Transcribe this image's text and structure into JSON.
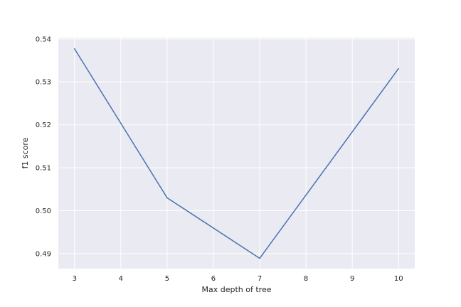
{
  "chart_data": {
    "type": "line",
    "title": "",
    "xlabel": "Max depth of tree",
    "ylabel": "f1 score",
    "x": [
      3,
      5,
      7,
      10
    ],
    "series": [
      {
        "values": [
          0.5377,
          0.503,
          0.4889,
          0.5331
        ]
      }
    ],
    "xlim": [
      2.65,
      10.35
    ],
    "ylim": [
      0.4865,
      0.5403
    ],
    "xticks": [
      3,
      4,
      5,
      6,
      7,
      8,
      9,
      10
    ],
    "xtick_labels": [
      "3",
      "4",
      "5",
      "6",
      "7",
      "8",
      "9",
      "10"
    ],
    "yticks": [
      0.49,
      0.5,
      0.51,
      0.52,
      0.53,
      0.54
    ],
    "ytick_labels": [
      "0.49",
      "0.50",
      "0.51",
      "0.52",
      "0.53",
      "0.54"
    ],
    "grid": true,
    "colors": {
      "plot_background": "#eaeaf2",
      "grid": "#ffffff",
      "line": "#4c72b0"
    }
  }
}
